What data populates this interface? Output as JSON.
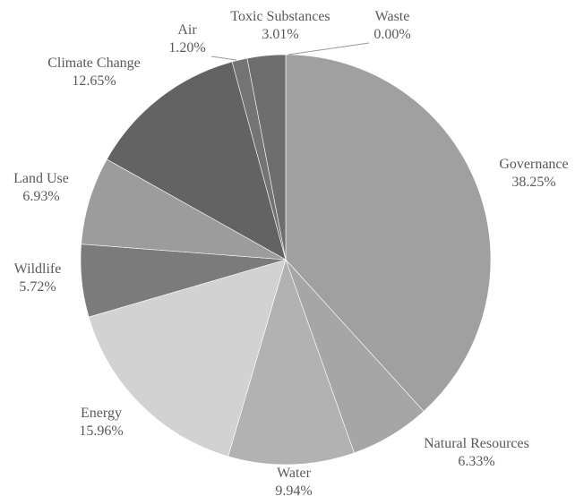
{
  "chart_data": {
    "type": "pie",
    "title": "",
    "legend": "none",
    "slices": [
      {
        "label": "Governance",
        "value": 38.25,
        "value_label": "38.25%",
        "color": "#a0a0a0"
      },
      {
        "label": "Natural Resources",
        "value": 6.33,
        "value_label": "6.33%",
        "color": "#a6a6a6"
      },
      {
        "label": "Water",
        "value": 9.94,
        "value_label": "9.94%",
        "color": "#b2b2b2"
      },
      {
        "label": "Energy",
        "value": 15.96,
        "value_label": "15.96%",
        "color": "#d2d2d2"
      },
      {
        "label": "Wildlife",
        "value": 5.72,
        "value_label": "5.72%",
        "color": "#7b7b7b"
      },
      {
        "label": "Land Use",
        "value": 6.93,
        "value_label": "6.93%",
        "color": "#9c9c9c"
      },
      {
        "label": "Climate Change",
        "value": 12.65,
        "value_label": "12.65%",
        "color": "#636363"
      },
      {
        "label": "Air",
        "value": 1.2,
        "value_label": "1.20%",
        "color": "#747474"
      },
      {
        "label": "Toxic Substances",
        "value": 3.01,
        "value_label": "3.01%",
        "color": "#6e6e6e"
      },
      {
        "label": "Waste",
        "value": 0.0,
        "value_label": "0.00%",
        "color": "#8a8a8a"
      }
    ]
  }
}
